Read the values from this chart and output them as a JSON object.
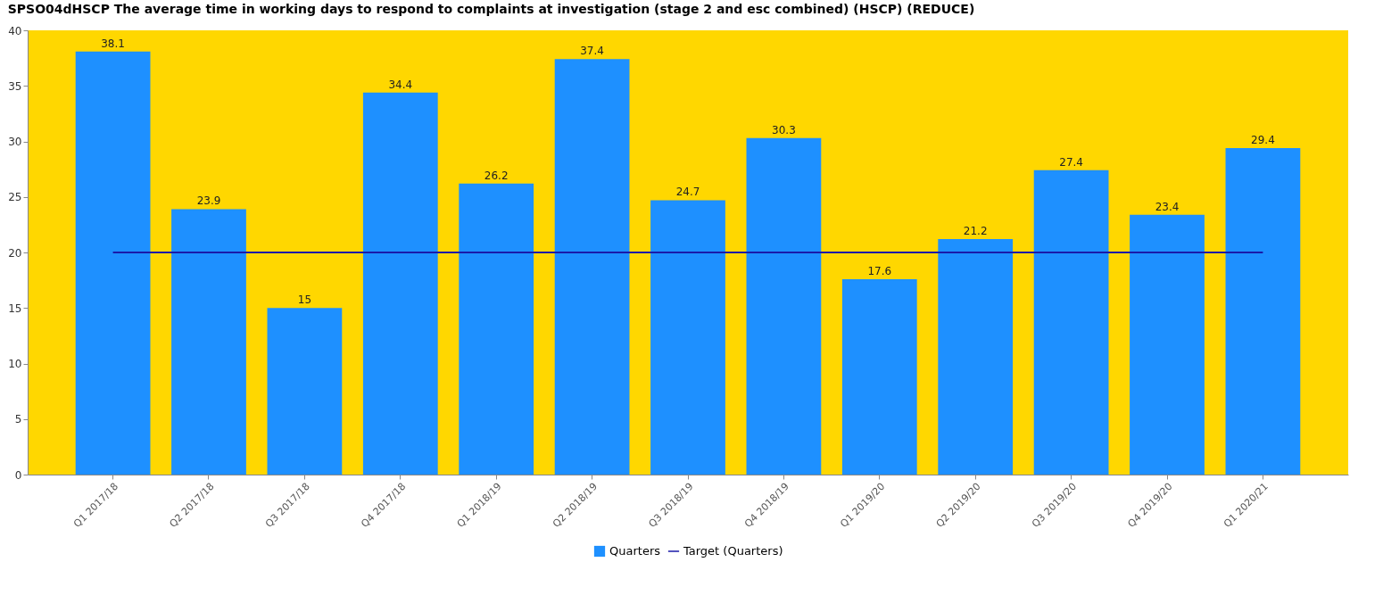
{
  "chart_data": {
    "type": "bar",
    "title": "SPSO04dHSCP The average time in working days to respond to complaints at investigation (stage 2 and esc combined) (HSCP) (REDUCE)",
    "categories": [
      "Q1 2017/18",
      "Q2 2017/18",
      "Q3 2017/18",
      "Q4 2017/18",
      "Q1 2018/19",
      "Q2 2018/19",
      "Q3 2018/19",
      "Q4 2018/19",
      "Q1 2019/20",
      "Q2 2019/20",
      "Q3 2019/20",
      "Q4 2019/20",
      "Q1 2020/21"
    ],
    "series": [
      {
        "name": "Quarters",
        "color": "#1e90ff",
        "values": [
          38.1,
          23.9,
          15,
          34.4,
          26.2,
          37.4,
          24.7,
          30.3,
          17.6,
          21.2,
          27.4,
          23.4,
          29.4
        ],
        "value_labels": [
          "38.1",
          "23.9",
          "15",
          "34.4",
          "26.2",
          "37.4",
          "24.7",
          "30.3",
          "17.6",
          "21.2",
          "27.4",
          "23.4",
          "29.4"
        ]
      },
      {
        "name": "Target (Quarters)",
        "type": "line",
        "color": "#1a1aa8",
        "values": [
          20,
          20,
          20,
          20,
          20,
          20,
          20,
          20,
          20,
          20,
          20,
          20,
          20
        ]
      }
    ],
    "ylim": [
      0,
      40
    ],
    "yticks": [
      0,
      5,
      10,
      15,
      20,
      25,
      30,
      35,
      40
    ],
    "grid": false,
    "legend": "bottom"
  }
}
